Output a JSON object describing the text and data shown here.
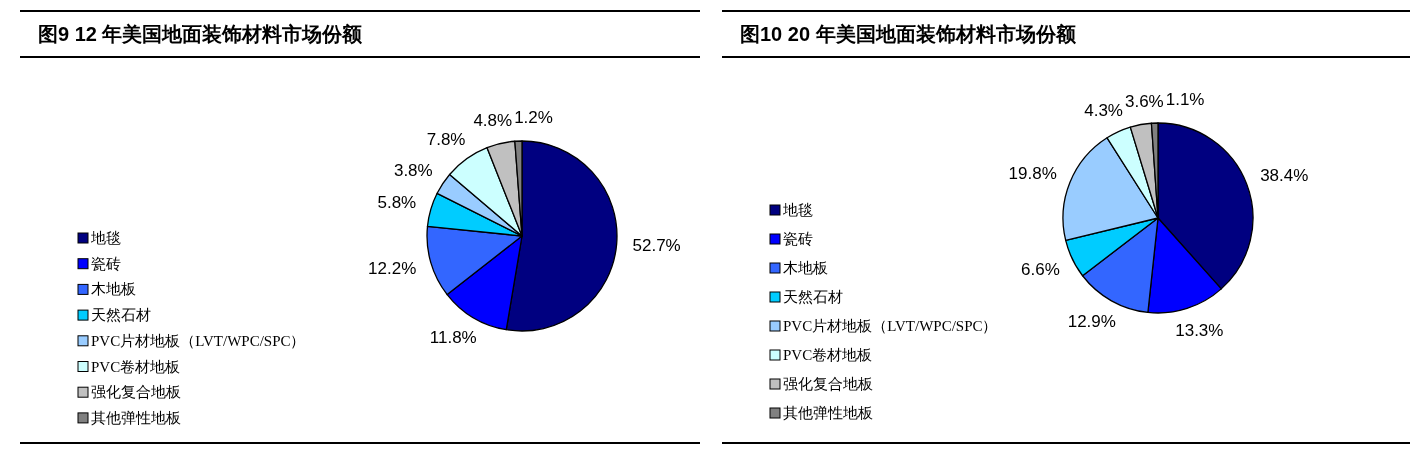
{
  "chart_data": [
    {
      "type": "pie",
      "title": "图9 12 年美国地面装饰材料市场份额",
      "categories": [
        "地毯",
        "瓷砖",
        "木地板",
        "天然石材",
        "PVC片材地板（LVT/WPC/SPC）",
        "PVC卷材地板",
        "强化复合地板",
        "其他弹性地板"
      ],
      "values": [
        52.7,
        11.8,
        12.2,
        5.8,
        3.8,
        7.8,
        4.8,
        1.2
      ],
      "colors": [
        "#000080",
        "#0000ff",
        "#3366ff",
        "#00ccff",
        "#99ccff",
        "#ccffff",
        "#c0c0c0",
        "#808080"
      ],
      "value_labels": [
        "52.7%",
        "11.8%",
        "12.2%",
        "5.8%",
        "3.8%",
        "7.8%",
        "4.8%",
        "1.2%"
      ],
      "legend": "left"
    },
    {
      "type": "pie",
      "title": "图10 20 年美国地面装饰材料市场份额",
      "categories": [
        "地毯",
        "瓷砖",
        "木地板",
        "天然石材",
        "PVC片材地板（LVT/WPC/SPC）",
        "PVC卷材地板",
        "强化复合地板",
        "其他弹性地板"
      ],
      "values": [
        38.4,
        13.3,
        12.9,
        6.6,
        19.8,
        4.3,
        3.6,
        1.1
      ],
      "colors": [
        "#000080",
        "#0000ff",
        "#3366ff",
        "#00ccff",
        "#99ccff",
        "#ccffff",
        "#c0c0c0",
        "#808080"
      ],
      "value_labels": [
        "38.4%",
        "13.3%",
        "12.9%",
        "6.6%",
        "19.8%",
        "4.3%",
        "3.6%",
        "1.1%"
      ],
      "legend": "left"
    }
  ]
}
